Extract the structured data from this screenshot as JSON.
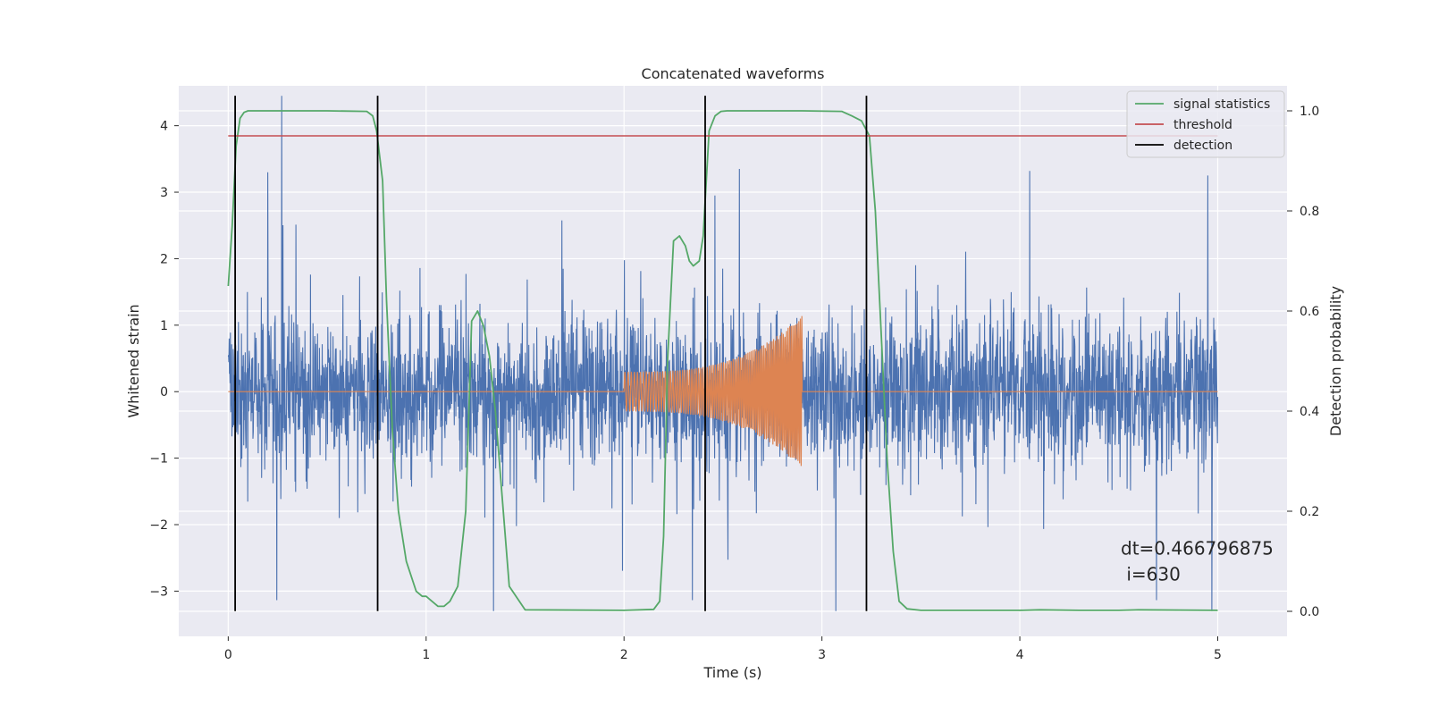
{
  "chart_data": {
    "type": "line",
    "title": "Concatenated waveforms",
    "xlabel": "Time (s)",
    "ylabel": "Whitened strain",
    "ylabel_right": "Detection probability",
    "xlim": [
      -0.25,
      5.35
    ],
    "ylim": [
      -3.68,
      4.6
    ],
    "ylim_right": [
      -0.05,
      1.05
    ],
    "x_ticks": [
      0,
      1,
      2,
      3,
      4,
      5
    ],
    "x_tick_labels": [
      "0",
      "1",
      "2",
      "3",
      "4",
      "5"
    ],
    "y_ticks": [
      -3,
      -2,
      -1,
      0,
      1,
      2,
      3,
      4
    ],
    "y_tick_labels": [
      "−3",
      "−2",
      "−1",
      "0",
      "1",
      "2",
      "3",
      "4"
    ],
    "y_right_ticks": [
      0.0,
      0.2,
      0.4,
      0.6,
      0.8,
      1.0
    ],
    "y_right_tick_labels": [
      "0.0",
      "0.2",
      "0.4",
      "0.6",
      "0.8",
      "1.0"
    ],
    "grid": true,
    "legend_position": "top-right",
    "colors": {
      "background": "#eaeaf2",
      "grid": "#ffffff",
      "strain": "#4c72b0",
      "template": "#dd8452",
      "signal_statistics": "#55a868",
      "threshold": "#c44e52",
      "detection": "#000000"
    },
    "series": [
      {
        "name": "signal statistics",
        "axis": "right",
        "x": [
          0,
          0.02,
          0.04,
          0.06,
          0.08,
          0.1,
          0.15,
          0.3,
          0.5,
          0.7,
          0.73,
          0.75,
          0.78,
          0.8,
          0.83,
          0.86,
          0.9,
          0.95,
          0.98,
          1.0,
          1.03,
          1.06,
          1.09,
          1.12,
          1.16,
          1.2,
          1.23,
          1.26,
          1.29,
          1.32,
          1.35,
          1.38,
          1.42,
          1.5,
          2.0,
          2.15,
          2.18,
          2.2,
          2.22,
          2.25,
          2.28,
          2.31,
          2.33,
          2.35,
          2.38,
          2.4,
          2.43,
          2.46,
          2.49,
          2.52,
          2.6,
          2.9,
          3.1,
          3.15,
          3.2,
          3.24,
          3.27,
          3.3,
          3.33,
          3.36,
          3.39,
          3.43,
          3.5,
          4.0,
          4.1,
          4.3,
          4.5,
          4.6,
          5.0
        ],
        "y": [
          0.65,
          0.77,
          0.93,
          0.985,
          0.997,
          1.0,
          1.0,
          1.0,
          1.0,
          0.999,
          0.99,
          0.96,
          0.86,
          0.62,
          0.36,
          0.2,
          0.1,
          0.04,
          0.03,
          0.03,
          0.02,
          0.01,
          0.01,
          0.02,
          0.05,
          0.2,
          0.58,
          0.6,
          0.57,
          0.51,
          0.4,
          0.25,
          0.05,
          0.003,
          0.002,
          0.004,
          0.02,
          0.15,
          0.5,
          0.74,
          0.75,
          0.73,
          0.7,
          0.69,
          0.7,
          0.75,
          0.96,
          0.99,
          0.999,
          1.0,
          1.0,
          1.0,
          0.999,
          0.99,
          0.98,
          0.95,
          0.8,
          0.55,
          0.3,
          0.12,
          0.02,
          0.005,
          0.002,
          0.002,
          0.003,
          0.002,
          0.002,
          0.003,
          0.002
        ]
      },
      {
        "name": "threshold",
        "axis": "right",
        "x": [
          0,
          5
        ],
        "y": [
          0.95,
          0.95
        ]
      },
      {
        "name": "detection",
        "axis": "left",
        "x": [
          0.035,
          0.755,
          2.41,
          3.225
        ],
        "y_range": [
          -3.3,
          4.45
        ]
      },
      {
        "axis": "left",
        "role": "whitened strain noise",
        "x_range": [
          0,
          5
        ],
        "amplitude_envelope": 1.4,
        "peak_max": 4.45,
        "peak_min": -3.3
      },
      {
        "axis": "left",
        "role": "injected chirp template",
        "x_range": [
          2.0,
          2.9
        ],
        "amplitude_start": 0.3,
        "amplitude_end": 1.15
      }
    ],
    "annotations": [
      {
        "text": "dt=0.466796875",
        "x": 4.51,
        "y": -2.45
      },
      {
        "text": " i=630",
        "x": 4.51,
        "y": -2.84
      }
    ]
  }
}
